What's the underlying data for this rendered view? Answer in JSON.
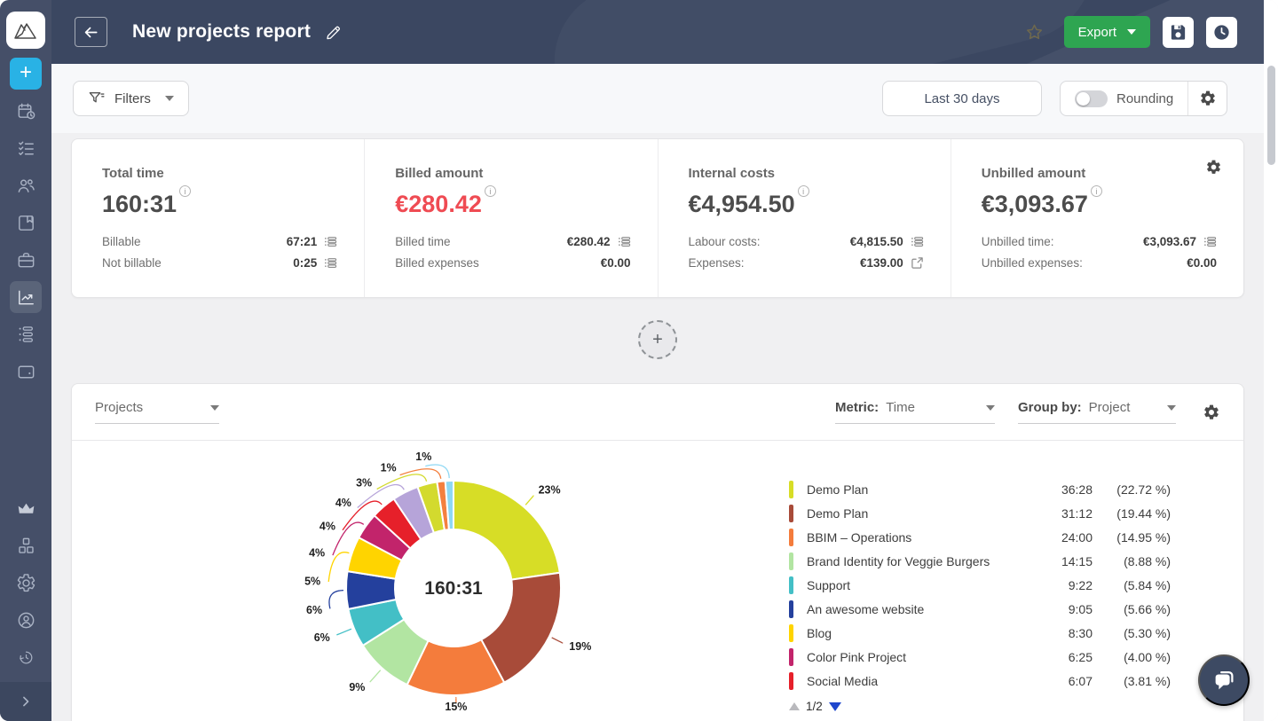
{
  "header": {
    "title": "New projects report",
    "export_label": "Export"
  },
  "filters": {
    "label": "Filters"
  },
  "toolbar": {
    "date_range": "Last 30 days",
    "rounding_label": "Rounding",
    "rounding_on": false
  },
  "summary": {
    "cards": [
      {
        "title": "Total time",
        "value": "160:31",
        "info": false,
        "rows": [
          {
            "label": "Billable",
            "value": "67:21",
            "icon": "entries"
          },
          {
            "label": "Not billable",
            "value": "0:25",
            "icon": "entries"
          }
        ]
      },
      {
        "title": "Billed amount",
        "value": "€280.42",
        "value_color": "#ef4b53",
        "info": true,
        "rows": [
          {
            "label": "Billed time",
            "value": "€280.42",
            "icon": "entries"
          },
          {
            "label": "Billed expenses",
            "value": "€0.00",
            "icon": null
          }
        ]
      },
      {
        "title": "Internal costs",
        "value": "€4,954.50",
        "info": false,
        "rows": [
          {
            "label": "Labour costs:",
            "value": "€4,815.50",
            "icon": "entries"
          },
          {
            "label": "Expenses:",
            "value": "€139.00",
            "icon": "external"
          }
        ]
      },
      {
        "title": "Unbilled amount",
        "value": "€3,093.67",
        "info": false,
        "rows": [
          {
            "label": "Unbilled time:",
            "value": "€3,093.67",
            "icon": "entries"
          },
          {
            "label": "Unbilled expenses:",
            "value": "€0.00",
            "icon": null
          }
        ]
      }
    ]
  },
  "report": {
    "type_select": "Projects",
    "metric_label": "Metric:",
    "metric_value": "Time",
    "groupby_label": "Group by:",
    "groupby_value": "Project",
    "pagination": "1/2"
  },
  "chart_data": {
    "type": "donut",
    "center_label": "160:31",
    "legend_position": "right",
    "series": [
      {
        "name": "Demo Plan",
        "time": "36:28",
        "pct": 22.72,
        "color": "#d7dd26"
      },
      {
        "name": "Demo Plan",
        "time": "31:12",
        "pct": 19.44,
        "color": "#a84b39"
      },
      {
        "name": "BBIM – Operations",
        "time": "24:00",
        "pct": 14.95,
        "color": "#f47c3c"
      },
      {
        "name": "Brand Identity for Veggie Burgers",
        "time": "14:15",
        "pct": 8.88,
        "color": "#b2e5a2"
      },
      {
        "name": "Support",
        "time": "9:22",
        "pct": 5.84,
        "color": "#43bfc6"
      },
      {
        "name": "An awesome website",
        "time": "9:05",
        "pct": 5.66,
        "color": "#24409d"
      },
      {
        "name": "Blog",
        "time": "8:30",
        "pct": 5.3,
        "color": "#ffd400"
      },
      {
        "name": "Color Pink Project",
        "time": "6:25",
        "pct": 4.0,
        "color": "#c2246b"
      },
      {
        "name": "Social Media",
        "time": "6:07",
        "pct": 3.81,
        "color": "#e6202a"
      }
    ],
    "other_slices": [
      {
        "pct": 3.96,
        "color": "#b6a4d9"
      },
      {
        "pct": 2.98,
        "color": "#d3da2e"
      },
      {
        "pct": 1.22,
        "color": "#f4803f"
      },
      {
        "pct": 1.23,
        "color": "#8ed8f4"
      }
    ]
  },
  "icons": {
    "add": "+",
    "info": "i"
  },
  "colors": {
    "accent_green": "#2ea551",
    "alert_red": "#ef4b53",
    "topbar_navy": "#3b4761",
    "sidebar_navy": "#454f68",
    "highlight_blue": "#29b2e5",
    "pagination_blue": "#1f47cd"
  },
  "sidebar": {
    "items": [
      "add",
      "schedule",
      "tasks",
      "team",
      "projects",
      "clients",
      "reports",
      "activity",
      "expenses",
      "upgrade",
      "integrations",
      "settings",
      "profile",
      "history",
      "expand"
    ],
    "active": "reports"
  }
}
